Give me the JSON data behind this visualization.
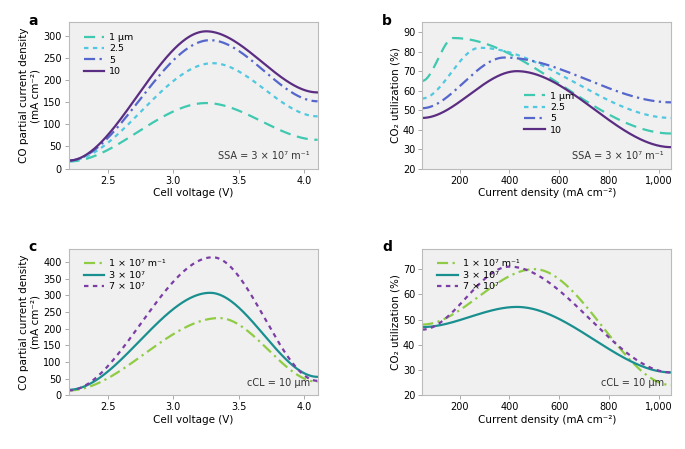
{
  "panel_a": {
    "title": "a",
    "xlabel": "Cell voltage (V)",
    "ylabel": "CO partial current density\n(mA cm⁻²)",
    "annotation": "SSA = 3 × 10⁷ m⁻¹",
    "xlim": [
      2.2,
      4.1
    ],
    "ylim": [
      0,
      330
    ],
    "yticks": [
      0,
      50,
      100,
      150,
      200,
      250,
      300
    ],
    "xticks": [
      2.5,
      3.0,
      3.5,
      4.0
    ],
    "lines": [
      {
        "label": "1 μm",
        "color": "#3ec9b0",
        "ls": "dashed",
        "peak_x": 3.25,
        "peak_y": 148,
        "start_x": 2.2,
        "start_y": 16,
        "end_x": 4.1,
        "end_y": 65
      },
      {
        "label": "2.5",
        "color": "#50c8e0",
        "ls": "dotted",
        "peak_x": 3.3,
        "peak_y": 238,
        "start_x": 2.2,
        "start_y": 18,
        "end_x": 4.1,
        "end_y": 118
      },
      {
        "label": "5",
        "color": "#5566cc",
        "ls": "dashdot",
        "peak_x": 3.28,
        "peak_y": 290,
        "start_x": 2.2,
        "start_y": 18,
        "end_x": 4.1,
        "end_y": 152
      },
      {
        "label": "10",
        "color": "#5b2d82",
        "ls": "solid",
        "peak_x": 3.25,
        "peak_y": 310,
        "start_x": 2.2,
        "start_y": 18,
        "end_x": 4.1,
        "end_y": 172
      }
    ]
  },
  "panel_b": {
    "title": "b",
    "xlabel": "Current density (mA cm⁻²)",
    "ylabel": "CO₂ utilization (%)",
    "annotation": "SSA = 3 × 10⁷ m⁻¹",
    "xlim": [
      50,
      1050
    ],
    "ylim": [
      20,
      95
    ],
    "yticks": [
      20,
      30,
      40,
      50,
      60,
      70,
      80,
      90
    ],
    "xticks": [
      200,
      400,
      600,
      800,
      1000
    ],
    "lines": [
      {
        "label": "1 μm",
        "color": "#3ec9b0",
        "ls": "dashed",
        "peak_x": 175,
        "peak_y": 87,
        "start_x": 50,
        "start_y": 65,
        "end_x": 1050,
        "end_y": 38
      },
      {
        "label": "2.5",
        "color": "#50c8e0",
        "ls": "dotted",
        "peak_x": 280,
        "peak_y": 82,
        "start_x": 50,
        "start_y": 56,
        "end_x": 1050,
        "end_y": 46
      },
      {
        "label": "5",
        "color": "#5566cc",
        "ls": "dashdot",
        "peak_x": 380,
        "peak_y": 77,
        "start_x": 50,
        "start_y": 51,
        "end_x": 1050,
        "end_y": 54
      },
      {
        "label": "10",
        "color": "#5b2d82",
        "ls": "solid",
        "peak_x": 430,
        "peak_y": 70,
        "start_x": 50,
        "start_y": 46,
        "end_x": 1050,
        "end_y": 31
      }
    ]
  },
  "panel_c": {
    "title": "c",
    "xlabel": "Cell voltage (V)",
    "ylabel": "CO partial current density\n(mA cm⁻²)",
    "annotation": "cCL = 10 μm",
    "xlim": [
      2.2,
      4.1
    ],
    "ylim": [
      0,
      440
    ],
    "yticks": [
      0,
      50,
      100,
      150,
      200,
      250,
      300,
      350,
      400
    ],
    "xticks": [
      2.5,
      3.0,
      3.5,
      4.0
    ],
    "lines": [
      {
        "label": "1 × 10⁷ m⁻¹",
        "color": "#8fcc44",
        "ls": "dashdot",
        "peak_x": 3.35,
        "peak_y": 232,
        "start_x": 2.2,
        "start_y": 14,
        "end_x": 4.1,
        "end_y": 40
      },
      {
        "label": "3 × 10⁷",
        "color": "#1a8f8f",
        "ls": "solid",
        "peak_x": 3.28,
        "peak_y": 308,
        "start_x": 2.2,
        "start_y": 16,
        "end_x": 4.1,
        "end_y": 55
      },
      {
        "label": "7 × 10⁷",
        "color": "#7b3da6",
        "ls": "dotted",
        "peak_x": 3.3,
        "peak_y": 415,
        "start_x": 2.2,
        "start_y": 14,
        "end_x": 4.1,
        "end_y": 43
      }
    ]
  },
  "panel_d": {
    "title": "d",
    "xlabel": "Current density (mA cm⁻²)",
    "ylabel": "CO₂ utilization (%)",
    "annotation": "cCL = 10 μm",
    "xlim": [
      50,
      1050
    ],
    "ylim": [
      20,
      78
    ],
    "yticks": [
      20,
      30,
      40,
      50,
      60,
      70
    ],
    "xticks": [
      200,
      400,
      600,
      800,
      1000
    ],
    "lines": [
      {
        "label": "1 × 10⁷ m⁻¹",
        "color": "#8fcc44",
        "ls": "dashdot",
        "peak_x": 500,
        "peak_y": 70,
        "start_x": 50,
        "start_y": 48,
        "end_x": 1050,
        "end_y": 24
      },
      {
        "label": "3 × 10⁷",
        "color": "#1a8f8f",
        "ls": "solid",
        "peak_x": 430,
        "peak_y": 55,
        "start_x": 50,
        "start_y": 47,
        "end_x": 1050,
        "end_y": 29
      },
      {
        "label": "7 × 10⁷",
        "color": "#7b3da6",
        "ls": "dotted",
        "peak_x": 400,
        "peak_y": 71,
        "start_x": 50,
        "start_y": 46,
        "end_x": 1050,
        "end_y": 29
      }
    ]
  }
}
